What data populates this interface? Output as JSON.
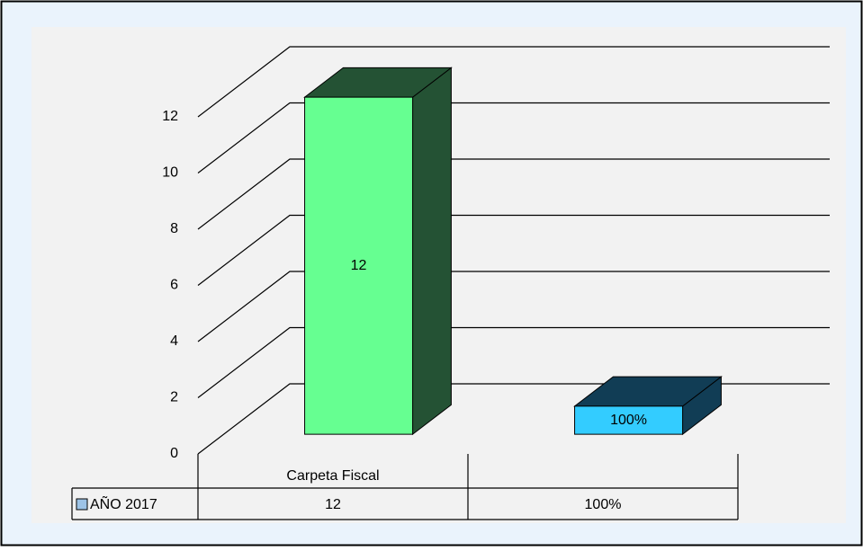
{
  "chart_data": {
    "type": "bar3d",
    "categories": [
      "Carpeta Fiscal",
      null
    ],
    "series": [
      {
        "name": "AÑO 2017",
        "color": "#9dc3e6",
        "values": [
          12,
          1
        ],
        "value_labels": [
          "12",
          "100%"
        ]
      }
    ],
    "colors": [
      "#66ff91",
      "#33ccff"
    ],
    "side_colors": [
      "#245234",
      "#113d55"
    ],
    "ylim": [
      0,
      12
    ],
    "yticks": [
      0,
      2,
      4,
      6,
      8,
      10,
      12
    ],
    "grid": true
  }
}
